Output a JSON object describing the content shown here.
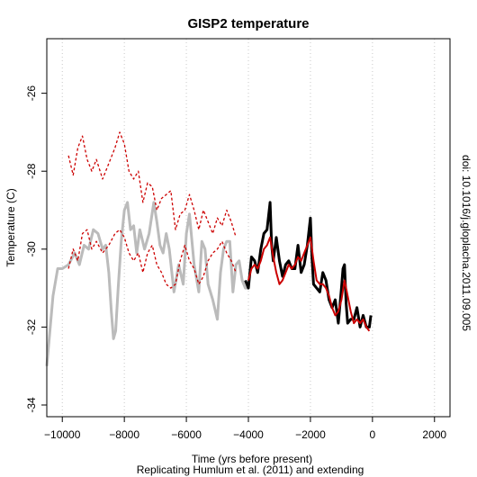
{
  "chart_data": {
    "type": "line",
    "title": "GISP2 temperature",
    "xlabel": "Time (yrs before present)",
    "subtitle": "Replicating Humlum et al. (2011) and extending",
    "ylabel": "Temperature (C)",
    "side_label": "doi: 10.1016/j.gloplacha.2011.09.005",
    "xlim": [
      -10500,
      2500
    ],
    "ylim": [
      -34.3,
      -24.6
    ],
    "x_ticks": [
      -10000,
      -8000,
      -6000,
      -4000,
      -2000,
      0,
      2000
    ],
    "x_tick_labels": [
      "−10000",
      "−8000",
      "−6000",
      "−4000",
      "−2000",
      "0",
      "2000"
    ],
    "y_ticks": [
      -26,
      -28,
      -30,
      -32,
      -34
    ],
    "y_tick_labels": [
      "-26",
      "-28",
      "-30",
      "-32",
      "-34"
    ],
    "grid": "vertical dotted lines at x ticks",
    "series": [
      {
        "color": "#bbbbbb",
        "style": "solid-thick",
        "x": [
          -10500,
          -10300,
          -10150,
          -10000,
          -9800,
          -9600,
          -9450,
          -9300,
          -9150,
          -9000,
          -8850,
          -8700,
          -8600,
          -8500,
          -8420,
          -8350,
          -8280,
          -8200,
          -8100,
          -8000,
          -7900,
          -7800,
          -7700,
          -7600,
          -7500,
          -7350,
          -7200,
          -7050,
          -6950,
          -6850,
          -6750,
          -6650,
          -6550,
          -6400,
          -6250,
          -6100,
          -6000,
          -5900,
          -5750,
          -5600,
          -5500,
          -5400,
          -5300,
          -5150,
          -5000,
          -4900,
          -4800,
          -4700,
          -4600,
          -4500,
          -4400,
          -4300,
          -4200,
          -4100,
          -4000
        ],
        "values": [
          -33.0,
          -31.2,
          -30.5,
          -30.5,
          -30.4,
          -30.1,
          -30.4,
          -29.9,
          -30.0,
          -29.5,
          -29.6,
          -30.0,
          -29.9,
          -30.6,
          -31.6,
          -32.3,
          -32.1,
          -31.0,
          -29.8,
          -29.0,
          -28.8,
          -29.5,
          -29.4,
          -30.1,
          -29.5,
          -30.0,
          -29.6,
          -28.8,
          -29.3,
          -29.9,
          -30.1,
          -29.6,
          -30.0,
          -31.1,
          -30.4,
          -30.9,
          -29.6,
          -29.1,
          -30.4,
          -31.1,
          -29.8,
          -30.0,
          -30.9,
          -31.3,
          -31.8,
          -30.6,
          -30.0,
          -29.8,
          -29.8,
          -31.1,
          -30.4,
          -30.3,
          -30.8,
          -31.0,
          -31.0
        ]
      },
      {
        "color": "#000000",
        "style": "solid-thick",
        "x": [
          -4100,
          -4000,
          -3900,
          -3800,
          -3700,
          -3600,
          -3500,
          -3400,
          -3300,
          -3250,
          -3200,
          -3100,
          -3000,
          -2900,
          -2800,
          -2700,
          -2600,
          -2500,
          -2400,
          -2300,
          -2200,
          -2100,
          -2000,
          -1950,
          -1900,
          -1800,
          -1700,
          -1600,
          -1500,
          -1400,
          -1300,
          -1200,
          -1100,
          -1000,
          -950,
          -900,
          -850,
          -800,
          -700,
          -600,
          -500,
          -400,
          -300,
          -200,
          -100,
          -50
        ],
        "values": [
          -30.8,
          -31.0,
          -30.2,
          -30.3,
          -30.6,
          -30.0,
          -29.6,
          -29.5,
          -28.8,
          -29.9,
          -30.3,
          -29.7,
          -30.3,
          -30.7,
          -30.4,
          -30.3,
          -30.5,
          -30.5,
          -29.9,
          -30.6,
          -30.4,
          -29.9,
          -29.2,
          -30.2,
          -30.9,
          -31.0,
          -31.1,
          -30.6,
          -30.8,
          -31.3,
          -31.5,
          -31.3,
          -31.9,
          -31.0,
          -30.5,
          -30.4,
          -31.4,
          -31.9,
          -31.8,
          -31.8,
          -31.5,
          -32.0,
          -31.7,
          -32.0,
          -32.0,
          -31.7
        ]
      },
      {
        "color": "#cc0000",
        "style": "solid",
        "x": [
          -4000,
          -3900,
          -3800,
          -3700,
          -3600,
          -3500,
          -3400,
          -3300,
          -3200,
          -3100,
          -3000,
          -2900,
          -2800,
          -2700,
          -2600,
          -2500,
          -2400,
          -2300,
          -2200,
          -2100,
          -2000,
          -1900,
          -1800,
          -1700,
          -1600,
          -1500,
          -1400,
          -1300,
          -1200,
          -1100,
          -1000,
          -900,
          -800,
          -700,
          -600,
          -500,
          -400,
          -300,
          -200,
          -100
        ],
        "values": [
          -30.8,
          -30.5,
          -30.4,
          -30.5,
          -30.3,
          -30.0,
          -29.9,
          -29.7,
          -30.2,
          -30.6,
          -30.9,
          -30.8,
          -30.6,
          -30.4,
          -30.5,
          -30.4,
          -30.2,
          -30.3,
          -30.1,
          -29.9,
          -29.7,
          -30.3,
          -30.8,
          -30.9,
          -30.9,
          -31.0,
          -31.2,
          -31.5,
          -31.7,
          -31.6,
          -31.3,
          -30.8,
          -31.2,
          -31.6,
          -31.9,
          -31.8,
          -31.9,
          -31.8,
          -32.0,
          -32.1
        ]
      },
      {
        "color": "#cc0000",
        "style": "dashed",
        "x": [
          -9800,
          -9650,
          -9500,
          -9350,
          -9200,
          -9050,
          -8900,
          -8700,
          -8500,
          -8300,
          -8150,
          -8000,
          -7850,
          -7700,
          -7550,
          -7400,
          -7250,
          -7100,
          -6950,
          -6800,
          -6650,
          -6500,
          -6350,
          -6200,
          -6050,
          -5900,
          -5750,
          -5600,
          -5450,
          -5300,
          -5150,
          -5000,
          -4850,
          -4700,
          -4550,
          -4400
        ],
        "values": [
          -27.6,
          -28.1,
          -27.4,
          -27.1,
          -27.7,
          -28.0,
          -27.7,
          -28.2,
          -27.8,
          -27.4,
          -27.0,
          -27.3,
          -28.0,
          -28.2,
          -28.0,
          -28.8,
          -28.3,
          -28.4,
          -29.0,
          -28.7,
          -28.6,
          -28.5,
          -29.5,
          -29.1,
          -29.0,
          -28.6,
          -29.0,
          -29.5,
          -29.0,
          -29.3,
          -29.6,
          -29.2,
          -29.4,
          -29.0,
          -29.3,
          -29.7
        ]
      },
      {
        "color": "#cc0000",
        "style": "dashed",
        "x": [
          -9800,
          -9650,
          -9500,
          -9350,
          -9200,
          -9050,
          -8900,
          -8700,
          -8500,
          -8300,
          -8150,
          -8000,
          -7850,
          -7700,
          -7550,
          -7400,
          -7250,
          -7100,
          -6950,
          -6800,
          -6650,
          -6500,
          -6350,
          -6200,
          -6050,
          -5900,
          -5750,
          -5600,
          -5450,
          -5300,
          -5150,
          -5000,
          -4850,
          -4700,
          -4550,
          -4400
        ],
        "values": [
          -30.5,
          -30.0,
          -30.3,
          -29.6,
          -29.5,
          -30.0,
          -29.8,
          -30.1,
          -29.9,
          -29.6,
          -29.5,
          -29.7,
          -30.1,
          -30.3,
          -30.1,
          -30.6,
          -30.1,
          -29.9,
          -30.4,
          -30.6,
          -30.9,
          -31.0,
          -30.9,
          -30.3,
          -29.9,
          -30.3,
          -30.5,
          -30.9,
          -30.7,
          -30.3,
          -30.1,
          -30.0,
          -29.8,
          -30.1,
          -30.3,
          -30.6
        ]
      }
    ]
  }
}
